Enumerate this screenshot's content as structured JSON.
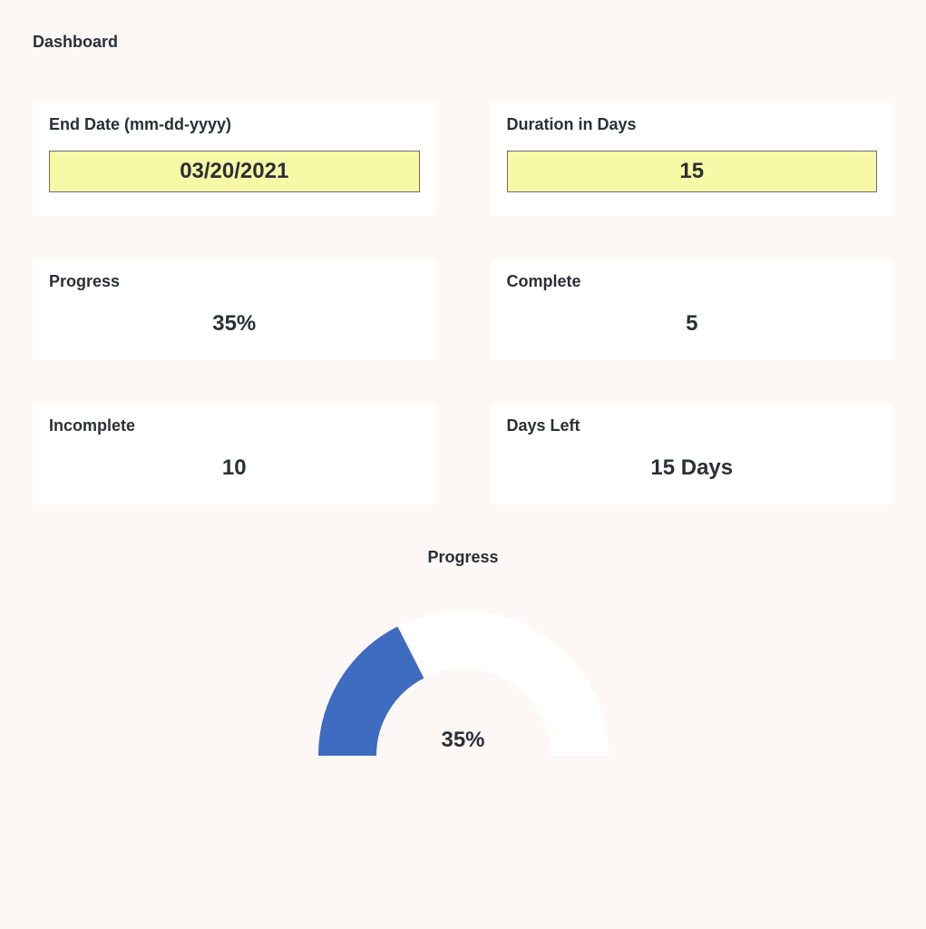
{
  "title": "Dashboard",
  "cards": {
    "end_date": {
      "label": "End Date (mm-dd-yyyy)",
      "value": "03/20/2021"
    },
    "duration": {
      "label": "Duration in Days",
      "value": "15"
    },
    "progress": {
      "label": "Progress",
      "value": "35%"
    },
    "complete": {
      "label": "Complete",
      "value": "5"
    },
    "incomplete": {
      "label": "Incomplete",
      "value": "10"
    },
    "days_left": {
      "label": "Days Left",
      "value": "15 Days"
    }
  },
  "highlight_bg": "#f8f9a6",
  "chart": {
    "type": "donut-semi",
    "title": "Progress",
    "percent": 35,
    "center_label": "35%",
    "arc_color": "#3d6cc0",
    "track_color": "#ffffff",
    "bg": "#ffffff",
    "inner_ratio": 0.6,
    "start_angle_deg": 180,
    "sweep_deg": 180,
    "title_fontsize": 18,
    "center_fontsize": 24
  }
}
